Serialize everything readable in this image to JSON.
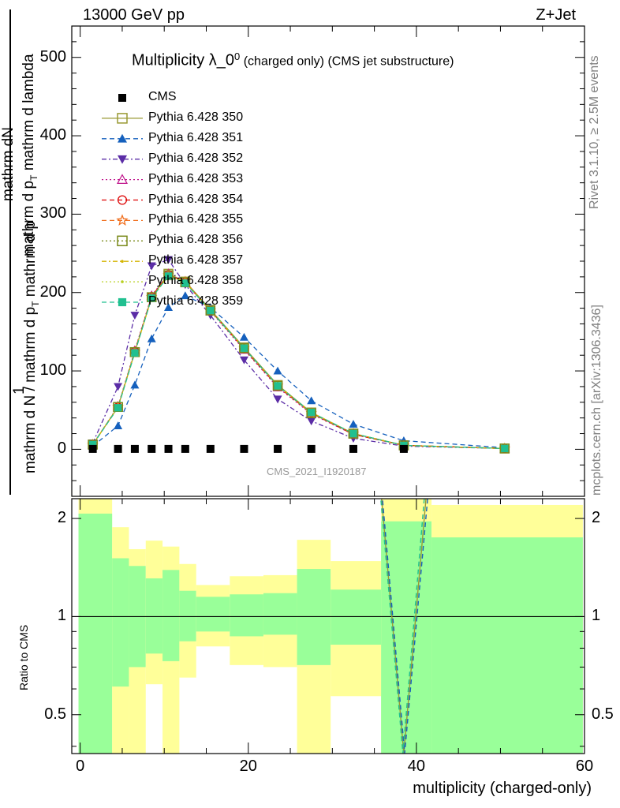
{
  "header": {
    "left": "13000 GeV pp",
    "right": "Z+Jet"
  },
  "side_text": {
    "rivet": "Rivet 3.1.10, ≥ 2.5M events",
    "mcplots": "mcplots.cern.ch [arXiv:1306.3436]"
  },
  "colors": {
    "ratio_band_inner": "#99ff99",
    "ratio_band_outer": "#ffff99",
    "frame": "#000000",
    "watermark": "#999999"
  },
  "chart_data": {
    "type": "line",
    "title": "Multiplicity λ_0^0 (charged only) (CMS jet substructure)",
    "title_main": "Multiplicity λ_0",
    "title_sup": "0",
    "title_rest": " (charged only) (CMS jet substructure)",
    "watermark": "CMS_2021_I1920187",
    "xlabel": "multiplicity (charged-only)",
    "ylabel_upper_num": "mathrm dN",
    "ylabel_upper_den": "mathrm d p_T mathrm d lambda",
    "ylabel_upper_den_main": "mathrm d p",
    "ylabel_upper_den_sub": "T",
    "ylabel_upper_den_rest": " mathrm d lambda",
    "ylabel_lower_num": "1",
    "ylabel_lower_den": "mathrm d N / mathrm d p_T mathrm d p",
    "ylabel_lower_den_main": "mathrm d N / mathrm d p",
    "ylabel_lower_den_sub": "T",
    "ylabel_lower_den_rest": " mathrm d p",
    "ratio_ylabel": "Ratio to CMS",
    "xlim": [
      -1,
      60
    ],
    "ylim": [
      -60,
      540
    ],
    "ratio_ylim": [
      0.38,
      2.3
    ],
    "ratio_scale": "log",
    "legend_placement": "top-left",
    "x_ticks": [
      "0",
      "20",
      "40",
      "60"
    ],
    "y_ticks": [
      "0",
      "100",
      "200",
      "300",
      "400",
      "500"
    ],
    "ratio_ticks": [
      "0.5",
      "1",
      "2"
    ],
    "x": [
      1.5,
      4.5,
      6.5,
      8.5,
      10.5,
      12.5,
      15.5,
      19.5,
      23.5,
      27.5,
      32.5,
      38.5,
      50.5
    ],
    "cms": {
      "name": "CMS",
      "values": [
        0.5,
        0.5,
        0.5,
        0.5,
        0.5,
        0.5,
        0.5,
        0.5,
        0.5,
        0.5,
        0.5,
        0.5,
        null
      ]
    },
    "series": [
      {
        "name": "Pythia 6.428 350",
        "color": "#999933",
        "dash": "",
        "marker": "square-open",
        "values": [
          6,
          54,
          124,
          194,
          224,
          214,
          178,
          130,
          82,
          47,
          20,
          5,
          1
        ]
      },
      {
        "name": "Pythia 6.428 351",
        "color": "#1560bd",
        "dash": "6,4",
        "marker": "triangle-up",
        "values": [
          4,
          30,
          82,
          141,
          181,
          196,
          181,
          143,
          100,
          62,
          32,
          11,
          2
        ]
      },
      {
        "name": "Pythia 6.428 352",
        "color": "#5b2da6",
        "dash": "6,3,2,3",
        "marker": "triangle-down",
        "values": [
          8,
          80,
          171,
          234,
          242,
          210,
          171,
          114,
          64,
          36,
          14,
          4,
          1
        ]
      },
      {
        "name": "Pythia 6.428 353",
        "color": "#c0148c",
        "dash": "2,3",
        "marker": "triangle-open",
        "values": [
          6,
          55,
          126,
          196,
          224,
          213,
          176,
          127,
          79,
          45,
          19,
          5,
          1
        ]
      },
      {
        "name": "Pythia 6.428 354",
        "color": "#dd0000",
        "dash": "6,4",
        "marker": "circle-open",
        "values": [
          6,
          54,
          125,
          195,
          223,
          213,
          177,
          128,
          80,
          46,
          19,
          5,
          1
        ]
      },
      {
        "name": "Pythia 6.428 355",
        "color": "#f07020",
        "dash": "6,4",
        "marker": "star-open",
        "values": [
          6,
          54,
          124,
          194,
          222,
          214,
          177,
          129,
          81,
          46,
          20,
          5,
          1
        ]
      },
      {
        "name": "Pythia 6.428 356",
        "color": "#7a8a1a",
        "dash": "2,3",
        "marker": "square-open",
        "values": [
          6,
          54,
          124,
          194,
          222,
          213,
          177,
          129,
          81,
          46,
          20,
          5,
          1
        ]
      },
      {
        "name": "Pythia 6.428 357",
        "color": "#d4b400",
        "dash": "6,3,2,3",
        "marker": "dot",
        "values": [
          6,
          54,
          124,
          193,
          222,
          213,
          177,
          129,
          81,
          47,
          20,
          5,
          1
        ]
      },
      {
        "name": "Pythia 6.428 358",
        "color": "#b8d020",
        "dash": "2,3",
        "marker": "dot",
        "values": [
          6,
          54,
          124,
          193,
          221,
          213,
          177,
          129,
          81,
          47,
          20,
          5,
          1
        ]
      },
      {
        "name": "Pythia 6.428 359",
        "color": "#20c090",
        "dash": "6,4",
        "marker": "square",
        "values": [
          6,
          53,
          123,
          193,
          221,
          212,
          177,
          129,
          81,
          47,
          20,
          5,
          1
        ]
      }
    ],
    "ratio_bands": [
      {
        "x0": -0.2,
        "x1": 3.8,
        "inner_lo": 0.38,
        "inner_hi": 2.07,
        "outer_lo": 0.38,
        "outer_hi": 2.4
      },
      {
        "x0": 3.8,
        "x1": 5.8,
        "inner_lo": 0.61,
        "inner_hi": 1.51,
        "outer_lo": 0.38,
        "outer_hi": 1.88
      },
      {
        "x0": 5.8,
        "x1": 7.8,
        "inner_lo": 0.7,
        "inner_hi": 1.43,
        "outer_lo": 0.38,
        "outer_hi": 1.61
      },
      {
        "x0": 7.8,
        "x1": 9.8,
        "inner_lo": 0.77,
        "inner_hi": 1.31,
        "outer_lo": 0.62,
        "outer_hi": 1.71
      },
      {
        "x0": 9.8,
        "x1": 11.8,
        "inner_lo": 0.73,
        "inner_hi": 1.39,
        "outer_lo": 0.38,
        "outer_hi": 1.64
      },
      {
        "x0": 11.8,
        "x1": 13.8,
        "inner_lo": 0.84,
        "inner_hi": 1.2,
        "outer_lo": 0.65,
        "outer_hi": 1.45
      },
      {
        "x0": 13.8,
        "x1": 17.8,
        "inner_lo": 0.9,
        "inner_hi": 1.15,
        "outer_lo": 0.81,
        "outer_hi": 1.25
      },
      {
        "x0": 17.8,
        "x1": 21.8,
        "inner_lo": 0.87,
        "inner_hi": 1.17,
        "outer_lo": 0.71,
        "outer_hi": 1.33
      },
      {
        "x0": 21.8,
        "x1": 25.8,
        "inner_lo": 0.88,
        "inner_hi": 1.18,
        "outer_lo": 0.7,
        "outer_hi": 1.34
      },
      {
        "x0": 25.8,
        "x1": 29.8,
        "inner_lo": 0.71,
        "inner_hi": 1.4,
        "outer_lo": 0.38,
        "outer_hi": 1.72
      },
      {
        "x0": 29.8,
        "x1": 35.8,
        "inner_lo": 0.82,
        "inner_hi": 1.21,
        "outer_lo": 0.57,
        "outer_hi": 1.48
      },
      {
        "x0": 35.8,
        "x1": 41.8,
        "inner_lo": 0.38,
        "inner_hi": 1.96,
        "outer_lo": 0.38,
        "outer_hi": 2.4
      },
      {
        "x0": 41.8,
        "x1": 59.8,
        "inner_lo": 0.38,
        "inner_hi": 1.75,
        "outer_lo": 0.38,
        "outer_hi": 2.2
      }
    ],
    "ratio_curves": [
      {
        "name": "Pythia 6.428 350",
        "color": "#999933",
        "dash": "",
        "x": [
          35.8,
          38.5,
          41.2
        ],
        "values": [
          2.4,
          0.38,
          2.4
        ]
      },
      {
        "name": "Pythia 6.428 351",
        "color": "#1560bd",
        "dash": "6,4",
        "x": [
          35.9,
          38.6,
          41.4
        ],
        "values": [
          2.4,
          0.38,
          2.4
        ]
      },
      {
        "name": "Pythia 6.428 359",
        "color": "#20c090",
        "dash": "6,4",
        "x": [
          35.7,
          38.4,
          41.0
        ],
        "values": [
          2.4,
          0.38,
          2.4
        ]
      }
    ]
  }
}
